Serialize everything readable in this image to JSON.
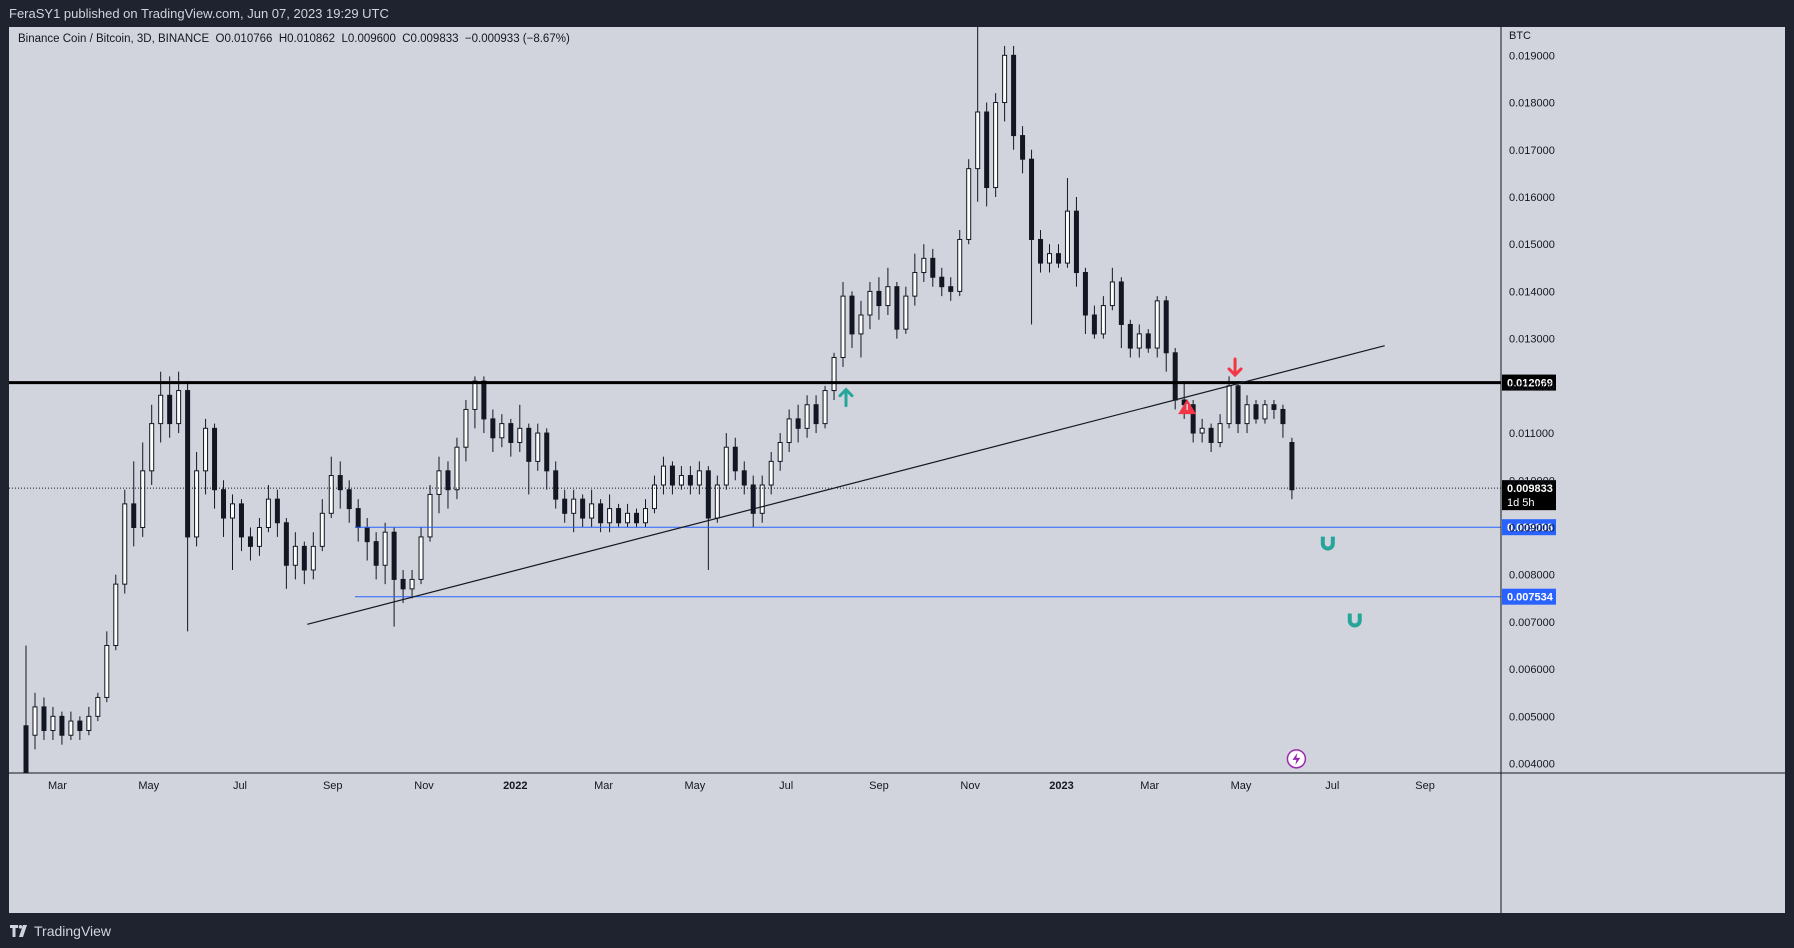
{
  "header": {
    "publisher_text": "FeraSY1 published on TradingView.com, Jun 07, 2023 19:29 UTC"
  },
  "legend": {
    "symbol": "Binance Coin / Bitcoin, 3D, BINANCE",
    "open": "O0.010766",
    "high": "H0.010862",
    "low": "L0.009600",
    "close": "C0.009833",
    "change": "−0.000933 (−8.67%)"
  },
  "footer": {
    "brand": "TradingView"
  },
  "chart_data": {
    "type": "candlestick",
    "currency_label": "BTC",
    "y_ticks": [
      "0.004000",
      "0.005000",
      "0.006000",
      "0.007000",
      "0.008000",
      "0.009000",
      "0.010000",
      "0.011000",
      "0.012000",
      "0.013000",
      "0.014000",
      "0.015000",
      "0.016000",
      "0.017000",
      "0.018000",
      "0.019000"
    ],
    "ylim": [
      0.0038,
      0.0196
    ],
    "x_ticks": [
      "Mar",
      "May",
      "Jul",
      "Sep",
      "Nov",
      "2022",
      "Mar",
      "May",
      "Jul",
      "Sep",
      "Nov",
      "2023",
      "Mar",
      "May",
      "Jul",
      "Sep"
    ],
    "x_ticks_bold": [
      "2022",
      "2023"
    ],
    "current_price": {
      "value": 0.009833,
      "label": "0.009833",
      "countdown": "1d 5h"
    },
    "levels": [
      {
        "value": 0.012069,
        "label": "0.012069",
        "style": "thick-black"
      },
      {
        "value": 0.009006,
        "label": "0.009006",
        "style": "blue"
      },
      {
        "value": 0.007534,
        "label": "0.007534",
        "style": "blue"
      }
    ],
    "trendline": {
      "from": [
        "2021-08-15",
        0.00695
      ],
      "to": [
        "2023-08-05",
        0.01285
      ]
    },
    "markers": [
      {
        "type": "up-arrow",
        "color": "#26a69a",
        "date": "2022-08-10",
        "value": 0.01175
      },
      {
        "type": "down-arrow",
        "color": "#f23645",
        "date": "2023-04-27",
        "value": 0.0124
      },
      {
        "type": "triangle-warning",
        "color": "#f23645",
        "date": "2023-03-26",
        "value": 0.01155
      },
      {
        "type": "magnet",
        "color": "#26a69a",
        "date": "2023-06-28",
        "value": 0.00868
      },
      {
        "type": "magnet",
        "color": "#26a69a",
        "date": "2023-07-16",
        "value": 0.00705
      },
      {
        "type": "lightning",
        "color": "#9c27b0",
        "date": "2023-06-07",
        "value": 0.0041
      }
    ],
    "candles": [
      [
        "2021-02-08",
        0.0048,
        0.0038,
        0.0065,
        0.0038
      ],
      [
        "2021-02-14",
        0.0046,
        0.0052,
        0.0055,
        0.0043
      ],
      [
        "2021-02-20",
        0.0052,
        0.0047,
        0.0054,
        0.0045
      ],
      [
        "2021-02-26",
        0.0047,
        0.005,
        0.0052,
        0.0045
      ],
      [
        "2021-03-04",
        0.005,
        0.0046,
        0.0051,
        0.0044
      ],
      [
        "2021-03-10",
        0.0046,
        0.0049,
        0.0051,
        0.0045
      ],
      [
        "2021-03-16",
        0.0049,
        0.0047,
        0.005,
        0.0045
      ],
      [
        "2021-03-22",
        0.0047,
        0.005,
        0.0052,
        0.0046
      ],
      [
        "2021-03-28",
        0.005,
        0.0054,
        0.0055,
        0.0049
      ],
      [
        "2021-04-03",
        0.0054,
        0.0065,
        0.0068,
        0.0053
      ],
      [
        "2021-04-09",
        0.0065,
        0.0078,
        0.008,
        0.0064
      ],
      [
        "2021-04-15",
        0.0078,
        0.0095,
        0.0098,
        0.0076
      ],
      [
        "2021-04-21",
        0.0095,
        0.009,
        0.0104,
        0.0086
      ],
      [
        "2021-04-27",
        0.009,
        0.0102,
        0.0108,
        0.0088
      ],
      [
        "2021-05-03",
        0.0102,
        0.0112,
        0.0116,
        0.0099
      ],
      [
        "2021-05-09",
        0.0112,
        0.0118,
        0.0123,
        0.0108
      ],
      [
        "2021-05-15",
        0.0118,
        0.0112,
        0.0122,
        0.0109
      ],
      [
        "2021-05-21",
        0.0112,
        0.0119,
        0.0123,
        0.011
      ],
      [
        "2021-05-27",
        0.0119,
        0.0088,
        0.0121,
        0.0068
      ],
      [
        "2021-06-02",
        0.0088,
        0.0102,
        0.0106,
        0.0086
      ],
      [
        "2021-06-08",
        0.0102,
        0.0111,
        0.0113,
        0.0097
      ],
      [
        "2021-06-14",
        0.0111,
        0.0098,
        0.0112,
        0.0094
      ],
      [
        "2021-06-20",
        0.0098,
        0.0092,
        0.01,
        0.0088
      ],
      [
        "2021-06-26",
        0.0092,
        0.0095,
        0.0097,
        0.0081
      ],
      [
        "2021-07-02",
        0.0095,
        0.0088,
        0.0096,
        0.0085
      ],
      [
        "2021-07-08",
        0.0088,
        0.0086,
        0.009,
        0.0083
      ],
      [
        "2021-07-14",
        0.0086,
        0.009,
        0.0092,
        0.0084
      ],
      [
        "2021-07-20",
        0.009,
        0.0096,
        0.0099,
        0.0089
      ],
      [
        "2021-07-26",
        0.0096,
        0.0091,
        0.0098,
        0.0088
      ],
      [
        "2021-08-01",
        0.0091,
        0.0082,
        0.0092,
        0.0077
      ],
      [
        "2021-08-07",
        0.0082,
        0.0086,
        0.0089,
        0.0079
      ],
      [
        "2021-08-13",
        0.0086,
        0.0081,
        0.0087,
        0.0078
      ],
      [
        "2021-08-19",
        0.0081,
        0.0086,
        0.0089,
        0.0079
      ],
      [
        "2021-08-25",
        0.0086,
        0.0093,
        0.0096,
        0.0085
      ],
      [
        "2021-08-31",
        0.0093,
        0.0101,
        0.0105,
        0.0092
      ],
      [
        "2021-09-06",
        0.0101,
        0.0098,
        0.0104,
        0.0094
      ],
      [
        "2021-09-12",
        0.0098,
        0.0094,
        0.01,
        0.0091
      ],
      [
        "2021-09-18",
        0.0094,
        0.009,
        0.0096,
        0.0087
      ],
      [
        "2021-09-24",
        0.009,
        0.0087,
        0.0092,
        0.0083
      ],
      [
        "2021-09-30",
        0.0087,
        0.0082,
        0.0089,
        0.0079
      ],
      [
        "2021-10-06",
        0.0082,
        0.0089,
        0.0091,
        0.0078
      ],
      [
        "2021-10-12",
        0.0089,
        0.0079,
        0.009,
        0.0069
      ],
      [
        "2021-10-18",
        0.0079,
        0.0077,
        0.0081,
        0.0074
      ],
      [
        "2021-10-24",
        0.0077,
        0.0079,
        0.0081,
        0.0075
      ],
      [
        "2021-10-30",
        0.0079,
        0.0088,
        0.009,
        0.0078
      ],
      [
        "2021-11-05",
        0.0088,
        0.0097,
        0.0099,
        0.0087
      ],
      [
        "2021-11-11",
        0.0097,
        0.0102,
        0.0105,
        0.0093
      ],
      [
        "2021-11-17",
        0.0102,
        0.0098,
        0.0104,
        0.0094
      ],
      [
        "2021-11-23",
        0.0098,
        0.0107,
        0.0109,
        0.0096
      ],
      [
        "2021-11-29",
        0.0107,
        0.0115,
        0.0117,
        0.0104
      ],
      [
        "2021-12-05",
        0.0115,
        0.0121,
        0.0122,
        0.0111
      ],
      [
        "2021-12-11",
        0.0121,
        0.0113,
        0.0122,
        0.011
      ],
      [
        "2021-12-17",
        0.0113,
        0.0109,
        0.0115,
        0.0106
      ],
      [
        "2021-12-23",
        0.0109,
        0.0112,
        0.0114,
        0.0107
      ],
      [
        "2021-12-29",
        0.0112,
        0.0108,
        0.0113,
        0.0105
      ],
      [
        "2022-01-04",
        0.0108,
        0.0111,
        0.0116,
        0.0106
      ],
      [
        "2022-01-10",
        0.0111,
        0.0104,
        0.0112,
        0.0097
      ],
      [
        "2022-01-16",
        0.0104,
        0.011,
        0.0112,
        0.0102
      ],
      [
        "2022-01-22",
        0.011,
        0.0102,
        0.0111,
        0.0098
      ],
      [
        "2022-01-28",
        0.0102,
        0.0096,
        0.0104,
        0.0094
      ],
      [
        "2022-02-03",
        0.0096,
        0.0093,
        0.0098,
        0.0091
      ],
      [
        "2022-02-09",
        0.0093,
        0.0096,
        0.0098,
        0.0089
      ],
      [
        "2022-02-15",
        0.0096,
        0.0092,
        0.0097,
        0.009
      ],
      [
        "2022-02-21",
        0.0092,
        0.0095,
        0.0098,
        0.009
      ],
      [
        "2022-02-27",
        0.0095,
        0.0091,
        0.0096,
        0.0089
      ],
      [
        "2022-03-05",
        0.0091,
        0.0094,
        0.0097,
        0.0089
      ],
      [
        "2022-03-11",
        0.0094,
        0.0091,
        0.0095,
        0.009
      ],
      [
        "2022-03-17",
        0.0091,
        0.0093,
        0.0095,
        0.009
      ],
      [
        "2022-03-23",
        0.0093,
        0.0091,
        0.0094,
        0.009
      ],
      [
        "2022-03-29",
        0.0091,
        0.0094,
        0.0096,
        0.009
      ],
      [
        "2022-04-04",
        0.0094,
        0.0099,
        0.0101,
        0.0093
      ],
      [
        "2022-04-10",
        0.0099,
        0.0103,
        0.0105,
        0.0097
      ],
      [
        "2022-04-16",
        0.0103,
        0.0099,
        0.0104,
        0.0097
      ],
      [
        "2022-04-22",
        0.0099,
        0.0101,
        0.0103,
        0.0098
      ],
      [
        "2022-04-28",
        0.0101,
        0.0099,
        0.0103,
        0.0097
      ],
      [
        "2022-05-04",
        0.0099,
        0.0102,
        0.0104,
        0.0097
      ],
      [
        "2022-05-10",
        0.0102,
        0.0092,
        0.0103,
        0.0081
      ],
      [
        "2022-05-16",
        0.0092,
        0.0099,
        0.0101,
        0.0091
      ],
      [
        "2022-05-22",
        0.0099,
        0.0107,
        0.011,
        0.0098
      ],
      [
        "2022-05-28",
        0.0107,
        0.0102,
        0.0109,
        0.01
      ],
      [
        "2022-06-03",
        0.0102,
        0.0099,
        0.0104,
        0.0097
      ],
      [
        "2022-06-09",
        0.0099,
        0.0093,
        0.0101,
        0.009
      ],
      [
        "2022-06-15",
        0.0093,
        0.0099,
        0.0101,
        0.0091
      ],
      [
        "2022-06-21",
        0.0099,
        0.0104,
        0.0106,
        0.0097
      ],
      [
        "2022-06-27",
        0.0104,
        0.0108,
        0.011,
        0.0102
      ],
      [
        "2022-07-03",
        0.0108,
        0.0113,
        0.0115,
        0.0106
      ],
      [
        "2022-07-09",
        0.0113,
        0.0111,
        0.0116,
        0.0108
      ],
      [
        "2022-07-15",
        0.0111,
        0.0116,
        0.0118,
        0.0109
      ],
      [
        "2022-07-21",
        0.0116,
        0.0112,
        0.0118,
        0.011
      ],
      [
        "2022-07-27",
        0.0112,
        0.0119,
        0.012,
        0.0111
      ],
      [
        "2022-08-02",
        0.0119,
        0.0126,
        0.0127,
        0.0117
      ],
      [
        "2022-08-08",
        0.0126,
        0.0139,
        0.0142,
        0.0124
      ],
      [
        "2022-08-14",
        0.0139,
        0.0131,
        0.014,
        0.0128
      ],
      [
        "2022-08-20",
        0.0131,
        0.0135,
        0.0138,
        0.0126
      ],
      [
        "2022-08-26",
        0.0135,
        0.014,
        0.0142,
        0.0132
      ],
      [
        "2022-09-01",
        0.014,
        0.0137,
        0.0143,
        0.0134
      ],
      [
        "2022-09-07",
        0.0137,
        0.0141,
        0.0145,
        0.0135
      ],
      [
        "2022-09-13",
        0.0141,
        0.0132,
        0.0142,
        0.013
      ],
      [
        "2022-09-19",
        0.0132,
        0.0139,
        0.0141,
        0.0131
      ],
      [
        "2022-09-25",
        0.0139,
        0.0144,
        0.0148,
        0.0137
      ],
      [
        "2022-10-01",
        0.0144,
        0.0147,
        0.015,
        0.0142
      ],
      [
        "2022-10-07",
        0.0147,
        0.0143,
        0.0149,
        0.0141
      ],
      [
        "2022-10-13",
        0.0143,
        0.0141,
        0.0145,
        0.0139
      ],
      [
        "2022-10-19",
        0.0141,
        0.014,
        0.0143,
        0.0138
      ],
      [
        "2022-10-25",
        0.014,
        0.0151,
        0.0153,
        0.0139
      ],
      [
        "2022-10-31",
        0.0151,
        0.0166,
        0.0168,
        0.015
      ],
      [
        "2022-11-06",
        0.0166,
        0.0178,
        0.0196,
        0.0159
      ],
      [
        "2022-11-12",
        0.0178,
        0.0162,
        0.018,
        0.0158
      ],
      [
        "2022-11-18",
        0.0162,
        0.018,
        0.0182,
        0.016
      ],
      [
        "2022-11-24",
        0.018,
        0.019,
        0.0192,
        0.0176
      ],
      [
        "2022-11-30",
        0.019,
        0.0173,
        0.0192,
        0.017
      ],
      [
        "2022-12-06",
        0.0173,
        0.0168,
        0.0175,
        0.0165
      ],
      [
        "2022-12-12",
        0.0168,
        0.0151,
        0.017,
        0.0133
      ],
      [
        "2022-12-18",
        0.0151,
        0.0146,
        0.0153,
        0.0144
      ],
      [
        "2022-12-24",
        0.0146,
        0.0148,
        0.015,
        0.0144
      ],
      [
        "2022-12-30",
        0.0148,
        0.0146,
        0.015,
        0.0145
      ],
      [
        "2023-01-05",
        0.0146,
        0.0157,
        0.0164,
        0.0145
      ],
      [
        "2023-01-11",
        0.0157,
        0.0144,
        0.016,
        0.0141
      ],
      [
        "2023-01-17",
        0.0144,
        0.0135,
        0.0145,
        0.0131
      ],
      [
        "2023-01-23",
        0.0135,
        0.0131,
        0.0137,
        0.013
      ],
      [
        "2023-01-29",
        0.0131,
        0.0137,
        0.0139,
        0.013
      ],
      [
        "2023-02-04",
        0.0137,
        0.0142,
        0.0145,
        0.0136
      ],
      [
        "2023-02-10",
        0.0142,
        0.0133,
        0.0143,
        0.0128
      ],
      [
        "2023-02-16",
        0.0133,
        0.0128,
        0.0134,
        0.0126
      ],
      [
        "2023-02-22",
        0.0128,
        0.0131,
        0.0133,
        0.0126
      ],
      [
        "2023-02-28",
        0.0131,
        0.0128,
        0.0132,
        0.0127
      ],
      [
        "2023-03-06",
        0.0128,
        0.0138,
        0.0139,
        0.0126
      ],
      [
        "2023-03-12",
        0.0138,
        0.0127,
        0.0139,
        0.0123
      ],
      [
        "2023-03-18",
        0.0127,
        0.0117,
        0.0128,
        0.0115
      ],
      [
        "2023-03-24",
        0.0117,
        0.0116,
        0.0121,
        0.0113
      ],
      [
        "2023-03-30",
        0.0116,
        0.011,
        0.0117,
        0.0108
      ],
      [
        "2023-04-05",
        0.011,
        0.0111,
        0.0113,
        0.0108
      ],
      [
        "2023-04-11",
        0.0111,
        0.0108,
        0.0112,
        0.0106
      ],
      [
        "2023-04-17",
        0.0108,
        0.0112,
        0.0114,
        0.0107
      ],
      [
        "2023-04-23",
        0.0112,
        0.012,
        0.0122,
        0.0111
      ],
      [
        "2023-04-29",
        0.012,
        0.0112,
        0.0121,
        0.011
      ],
      [
        "2023-05-05",
        0.0112,
        0.0116,
        0.0118,
        0.011
      ],
      [
        "2023-05-11",
        0.0116,
        0.0113,
        0.0117,
        0.0112
      ],
      [
        "2023-05-17",
        0.0113,
        0.0116,
        0.0117,
        0.0112
      ],
      [
        "2023-05-23",
        0.0116,
        0.0115,
        0.0117,
        0.0113
      ],
      [
        "2023-05-29",
        0.0115,
        0.0112,
        0.0116,
        0.0109
      ],
      [
        "2023-06-04",
        0.0108,
        0.0098,
        0.0109,
        0.0096
      ]
    ]
  }
}
